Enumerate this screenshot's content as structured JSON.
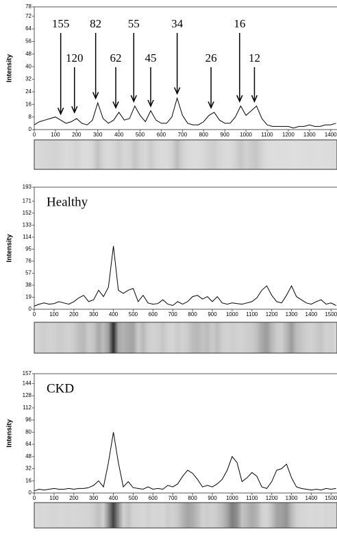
{
  "chart_data": [
    {
      "type": "line",
      "ylabel": "Intensity",
      "color": "#000000",
      "grid": false,
      "xlim": [
        0,
        1430
      ],
      "ylim": [
        0,
        78
      ],
      "xticks": [
        0,
        100,
        200,
        300,
        400,
        500,
        600,
        700,
        800,
        900,
        1000,
        1100,
        1200,
        1300,
        1400
      ],
      "yticks": [
        0,
        8,
        16,
        24,
        32,
        40,
        48,
        56,
        64,
        72,
        78
      ],
      "x": [
        0,
        25,
        50,
        75,
        100,
        125,
        150,
        175,
        200,
        225,
        250,
        275,
        300,
        325,
        350,
        375,
        400,
        425,
        450,
        475,
        500,
        525,
        550,
        575,
        600,
        625,
        650,
        675,
        700,
        725,
        750,
        775,
        800,
        825,
        850,
        875,
        900,
        925,
        950,
        975,
        1000,
        1025,
        1050,
        1075,
        1100,
        1125,
        1150,
        1175,
        1200,
        1225,
        1250,
        1275,
        1300,
        1325,
        1350,
        1375,
        1400,
        1425
      ],
      "values": [
        3,
        5,
        6,
        7,
        8,
        6,
        4,
        5,
        7,
        4,
        3,
        6,
        17,
        7,
        4,
        6,
        11,
        6,
        7,
        15,
        9,
        5,
        12,
        6,
        4,
        4,
        8,
        20,
        9,
        4,
        3,
        3,
        5,
        9,
        11,
        6,
        4,
        4,
        8,
        15,
        9,
        12,
        15,
        7,
        3,
        2,
        2,
        2,
        2,
        1,
        2,
        2,
        3,
        2,
        2,
        3,
        3,
        4
      ],
      "annotations": [
        {
          "text": "155",
          "x": 125,
          "y": 9
        },
        {
          "text": "120",
          "x": 190,
          "y": 10
        },
        {
          "text": "82",
          "x": 290,
          "y": 19
        },
        {
          "text": "62",
          "x": 385,
          "y": 13
        },
        {
          "text": "55",
          "x": 470,
          "y": 17
        },
        {
          "text": "45",
          "x": 550,
          "y": 14
        },
        {
          "text": "34",
          "x": 675,
          "y": 22
        },
        {
          "text": "26",
          "x": 835,
          "y": 13
        },
        {
          "text": "16",
          "x": 970,
          "y": 17
        },
        {
          "text": "12",
          "x": 1040,
          "y": 17
        }
      ]
    },
    {
      "type": "line",
      "title": "Healthy",
      "ylabel": "Intensity",
      "color": "#000000",
      "grid": false,
      "xlim": [
        0,
        1530
      ],
      "ylim": [
        0,
        193
      ],
      "xticks": [
        0,
        100,
        200,
        300,
        400,
        500,
        600,
        700,
        800,
        900,
        1000,
        1100,
        1200,
        1300,
        1400,
        1500
      ],
      "yticks": [
        0,
        19,
        38,
        57,
        76,
        95,
        114,
        133,
        152,
        171,
        193
      ],
      "x": [
        0,
        25,
        50,
        75,
        100,
        125,
        150,
        175,
        200,
        225,
        250,
        275,
        300,
        325,
        350,
        375,
        400,
        425,
        450,
        475,
        500,
        525,
        550,
        575,
        600,
        625,
        650,
        675,
        700,
        725,
        750,
        775,
        800,
        825,
        850,
        875,
        900,
        925,
        950,
        975,
        1000,
        1025,
        1050,
        1075,
        1100,
        1125,
        1150,
        1175,
        1200,
        1225,
        1250,
        1275,
        1300,
        1325,
        1350,
        1375,
        1400,
        1425,
        1450,
        1475,
        1500,
        1525
      ],
      "values": [
        5,
        8,
        10,
        8,
        9,
        12,
        10,
        8,
        12,
        18,
        22,
        12,
        15,
        30,
        20,
        35,
        100,
        30,
        25,
        30,
        33,
        12,
        22,
        10,
        8,
        9,
        15,
        8,
        6,
        12,
        8,
        12,
        20,
        22,
        16,
        20,
        12,
        20,
        10,
        8,
        10,
        9,
        8,
        10,
        12,
        18,
        30,
        37,
        22,
        12,
        10,
        22,
        37,
        20,
        15,
        10,
        8,
        12,
        15,
        8,
        10,
        6
      ]
    },
    {
      "type": "line",
      "title": "CKD",
      "ylabel": "Intensity",
      "color": "#000000",
      "grid": false,
      "xlim": [
        0,
        1530
      ],
      "ylim": [
        0,
        157
      ],
      "xticks": [
        0,
        100,
        200,
        300,
        400,
        500,
        600,
        700,
        800,
        900,
        1000,
        1100,
        1200,
        1300,
        1400,
        1500
      ],
      "yticks": [
        0,
        16,
        32,
        48,
        64,
        80,
        96,
        112,
        128,
        144,
        157
      ],
      "x": [
        0,
        25,
        50,
        75,
        100,
        125,
        150,
        175,
        200,
        225,
        250,
        275,
        300,
        325,
        350,
        375,
        400,
        425,
        450,
        475,
        500,
        525,
        550,
        575,
        600,
        625,
        650,
        675,
        700,
        725,
        750,
        775,
        800,
        825,
        850,
        875,
        900,
        925,
        950,
        975,
        1000,
        1025,
        1050,
        1075,
        1100,
        1125,
        1150,
        1175,
        1200,
        1225,
        1250,
        1275,
        1300,
        1325,
        1350,
        1375,
        1400,
        1425,
        1450,
        1475,
        1500,
        1525
      ],
      "values": [
        3,
        5,
        4,
        5,
        6,
        5,
        5,
        6,
        5,
        6,
        6,
        7,
        10,
        16,
        8,
        40,
        80,
        40,
        8,
        15,
        7,
        6,
        5,
        8,
        5,
        6,
        5,
        10,
        8,
        12,
        22,
        30,
        26,
        18,
        8,
        10,
        8,
        12,
        18,
        30,
        48,
        40,
        15,
        20,
        27,
        22,
        8,
        6,
        15,
        30,
        32,
        38,
        20,
        8,
        6,
        5,
        4,
        5,
        4,
        6,
        5,
        6
      ]
    }
  ]
}
